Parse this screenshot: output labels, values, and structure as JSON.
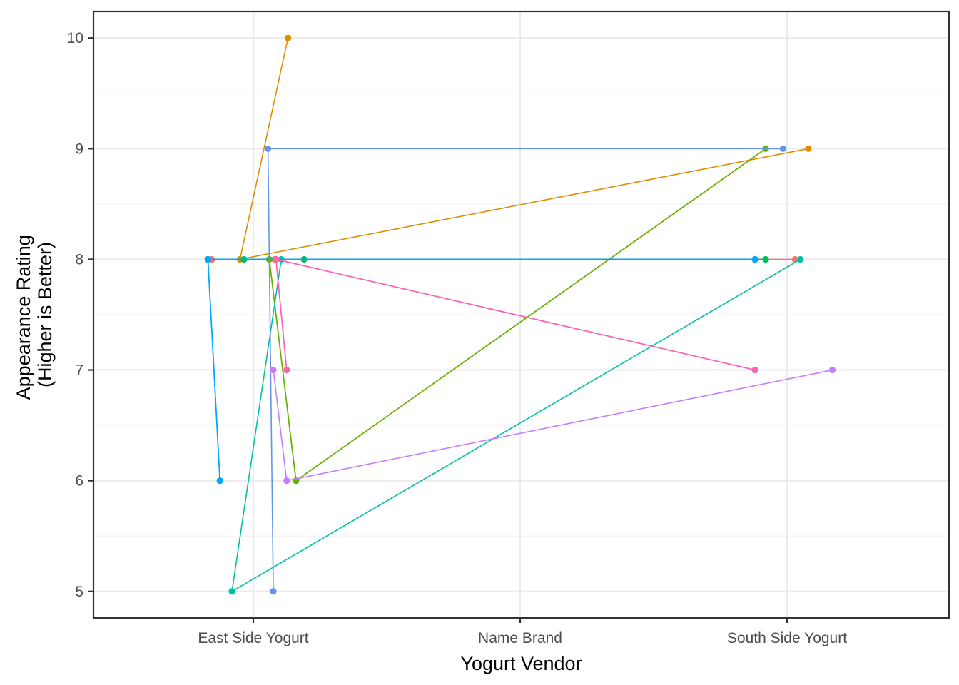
{
  "chart_data": {
    "type": "line",
    "title": "",
    "xlabel": "Yogurt Vendor",
    "ylabel_lines": [
      "Appearance Rating",
      "(Higher is Better)"
    ],
    "categories": [
      "East Side Yogurt",
      "Name Brand",
      "South Side Yogurt"
    ],
    "y_ticks": [
      "5",
      "6",
      "7",
      "8",
      "9",
      "10"
    ],
    "ylim": [
      4.76,
      10.24
    ],
    "grid": true,
    "legend": "none",
    "series": [
      {
        "color": "#F8766D",
        "points": [
          [
            -0.155,
            8
          ],
          [
            0.08,
            8
          ],
          [
            2.03,
            8
          ]
        ]
      },
      {
        "color": "#DB8E00",
        "points": [
          [
            0.13,
            10
          ],
          [
            -0.05,
            8
          ],
          [
            2.08,
            9
          ]
        ]
      },
      {
        "color": "#AEA200",
        "points": [
          [
            0.06,
            8
          ],
          [
            0.16,
            6
          ],
          [
            1.92,
            9
          ]
        ]
      },
      {
        "color": "#64B200",
        "points": [
          [
            0.06,
            8
          ],
          [
            0.16,
            6
          ],
          [
            1.92,
            9
          ]
        ]
      },
      {
        "color": "#00BD5C",
        "points": [
          [
            0.19,
            8
          ],
          [
            -0.035,
            8
          ],
          [
            1.92,
            8
          ]
        ]
      },
      {
        "color": "#00C1A7",
        "points": [
          [
            0.105,
            8
          ],
          [
            -0.08,
            5
          ],
          [
            2.05,
            8
          ]
        ]
      },
      {
        "color": "#00BADE",
        "points": [
          [
            -0.125,
            6
          ],
          [
            -0.17,
            8
          ],
          [
            1.88,
            8
          ]
        ]
      },
      {
        "color": "#00A6FF",
        "points": [
          [
            -0.125,
            6
          ],
          [
            -0.17,
            8
          ],
          [
            1.88,
            8
          ]
        ]
      },
      {
        "color": "#6495ED",
        "points": [
          [
            0.075,
            5
          ],
          [
            0.055,
            9
          ],
          [
            1.985,
            9
          ]
        ]
      },
      {
        "color": "#C77CFF",
        "points": [
          [
            0.075,
            7
          ],
          [
            0.125,
            6
          ],
          [
            2.17,
            7
          ]
        ]
      },
      {
        "color": "#F564E3",
        "points": [
          [
            0.125,
            7
          ],
          [
            0.085,
            8
          ],
          [
            1.88,
            7
          ]
        ]
      },
      {
        "color": "#FF64B0",
        "points": [
          [
            0.125,
            7
          ],
          [
            0.085,
            8
          ],
          [
            1.88,
            7
          ]
        ]
      }
    ]
  }
}
